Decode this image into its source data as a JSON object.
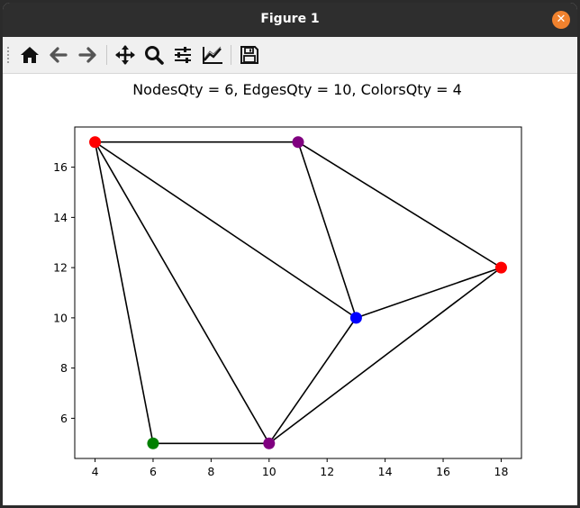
{
  "window": {
    "title": "Figure 1"
  },
  "toolbar": {
    "buttons": [
      {
        "name": "home-button",
        "icon": "home-icon"
      },
      {
        "name": "back-button",
        "icon": "arrow-left-icon"
      },
      {
        "name": "forward-button",
        "icon": "arrow-right-icon"
      },
      {
        "name": "pan-button",
        "icon": "move-icon"
      },
      {
        "name": "zoom-button",
        "icon": "magnifier-icon"
      },
      {
        "name": "configure-subplots-button",
        "icon": "sliders-icon"
      },
      {
        "name": "edit-axes-button",
        "icon": "line-chart-icon"
      },
      {
        "name": "save-button",
        "icon": "floppy-icon"
      }
    ]
  },
  "chart_data": {
    "type": "scatter",
    "title": "NodesQty = 6, EdgesQty = 10, ColorsQty = 4",
    "xlim": [
      3.3,
      18.7
    ],
    "ylim": [
      4.4,
      17.6
    ],
    "xticks": [
      4,
      6,
      8,
      10,
      12,
      14,
      16,
      18
    ],
    "yticks": [
      6,
      8,
      10,
      12,
      14,
      16
    ],
    "grid": false,
    "nodes": [
      {
        "x": 4,
        "y": 17,
        "color": "#ff0000"
      },
      {
        "x": 11,
        "y": 17,
        "color": "#800080"
      },
      {
        "x": 18,
        "y": 12,
        "color": "#ff0000"
      },
      {
        "x": 13,
        "y": 10,
        "color": "#0000ff"
      },
      {
        "x": 6,
        "y": 5,
        "color": "#008000"
      },
      {
        "x": 10,
        "y": 5,
        "color": "#800080"
      }
    ],
    "edges": [
      [
        0,
        1
      ],
      [
        0,
        3
      ],
      [
        0,
        4
      ],
      [
        0,
        5
      ],
      [
        1,
        3
      ],
      [
        1,
        2
      ],
      [
        2,
        3
      ],
      [
        2,
        5
      ],
      [
        3,
        5
      ],
      [
        4,
        5
      ]
    ]
  }
}
